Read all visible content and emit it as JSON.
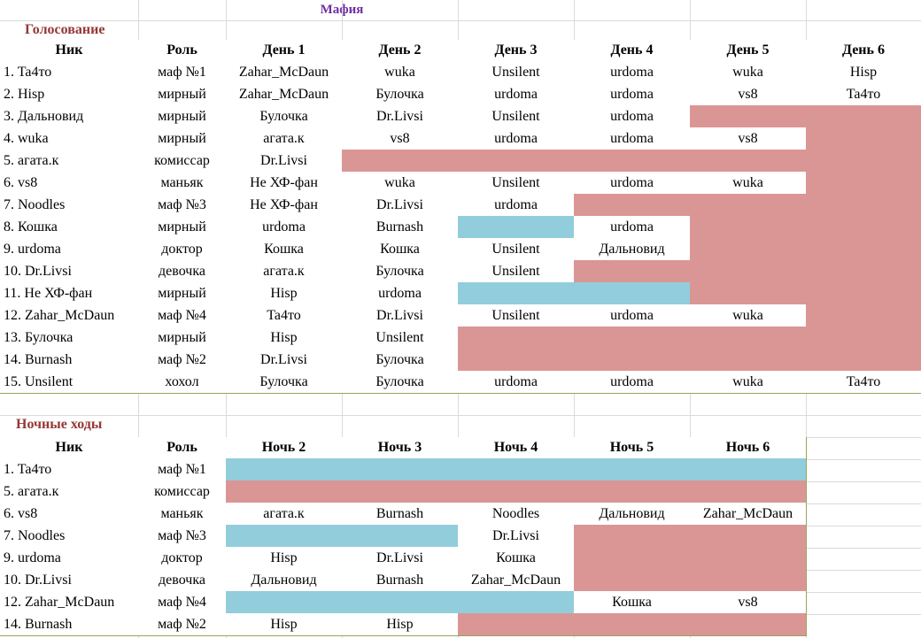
{
  "title": "Мафия",
  "voting": {
    "title": "Голосование",
    "header": [
      "Ник",
      "Роль",
      "День 1",
      "День 2",
      "День 3",
      "День 4",
      "День 5",
      "День 6"
    ],
    "rows": [
      [
        "1. Ta4то",
        "маф №1",
        "Zahar_McDaun",
        "wuka",
        "Unsilent",
        "urdoma",
        "wuka",
        "Hisp"
      ],
      [
        "2. Hisp",
        "мирный",
        "Zahar_McDaun",
        "Булочка",
        "urdoma",
        "urdoma",
        "vs8",
        "Ta4то"
      ],
      [
        "3. Дальновид",
        "мирный",
        "Булочка",
        "Dr.Livsi",
        "Unsilent",
        "urdoma",
        null,
        null
      ],
      [
        "4. wuka",
        "мирный",
        "агата.к",
        "vs8",
        "urdoma",
        "urdoma",
        "vs8",
        null
      ],
      [
        "5. агата.к",
        "комиссар",
        "Dr.Livsi",
        null,
        null,
        null,
        null,
        null
      ],
      [
        "6. vs8",
        "маньяк",
        "Не ХФ-фан",
        "wuka",
        "Unsilent",
        "urdoma",
        "wuka",
        null
      ],
      [
        "7. Noodles",
        "маф №3",
        "Не ХФ-фан",
        "Dr.Livsi",
        "urdoma",
        null,
        null,
        null
      ],
      [
        "8. Кошка",
        "мирный",
        "urdoma",
        "Burnash",
        null,
        "urdoma",
        null,
        null
      ],
      [
        "9. urdoma",
        "доктор",
        "Кошка",
        "Кошка",
        "Unsilent",
        "Дальновид",
        null,
        null
      ],
      [
        "10. Dr.Livsi",
        "девочка",
        "агата.к",
        "Булочка",
        "Unsilent",
        null,
        null,
        null
      ],
      [
        "11. Не ХФ-фан",
        "мирный",
        "Hisp",
        "urdoma",
        null,
        null,
        null,
        null
      ],
      [
        "12. Zahar_McDaun",
        "маф №4",
        "Ta4то",
        "Dr.Livsi",
        "Unsilent",
        "urdoma",
        "wuka",
        null
      ],
      [
        "13. Булочка",
        "мирный",
        "Hisp",
        "Unsilent",
        null,
        null,
        null,
        null
      ],
      [
        "14. Burnash",
        "маф №2",
        "Dr.Livsi",
        "Булочка",
        null,
        null,
        null,
        null
      ],
      [
        "15. Unsilent",
        "хохол",
        "Булочка",
        "Булочка",
        "urdoma",
        "urdoma",
        "wuka",
        "Ta4то"
      ]
    ],
    "fills": [
      [
        null,
        null,
        null,
        null,
        null,
        null,
        null,
        null
      ],
      [
        null,
        null,
        null,
        null,
        null,
        null,
        null,
        null
      ],
      [
        null,
        null,
        null,
        null,
        null,
        null,
        "#da9694",
        "#da9694"
      ],
      [
        null,
        null,
        null,
        null,
        null,
        null,
        null,
        "#da9694"
      ],
      [
        null,
        null,
        null,
        "#da9694",
        "#da9694",
        "#da9694",
        "#da9694",
        "#da9694"
      ],
      [
        null,
        null,
        null,
        null,
        null,
        null,
        null,
        "#da9694"
      ],
      [
        null,
        null,
        null,
        null,
        null,
        "#da9694",
        "#da9694",
        "#da9694"
      ],
      [
        null,
        null,
        null,
        null,
        "#92cddc",
        null,
        "#da9694",
        "#da9694"
      ],
      [
        null,
        null,
        null,
        null,
        null,
        null,
        "#da9694",
        "#da9694"
      ],
      [
        null,
        null,
        null,
        null,
        null,
        "#da9694",
        "#da9694",
        "#da9694"
      ],
      [
        null,
        null,
        null,
        null,
        "#92cddc",
        "#92cddc",
        "#da9694",
        "#da9694"
      ],
      [
        null,
        null,
        null,
        null,
        null,
        null,
        null,
        "#da9694"
      ],
      [
        null,
        null,
        null,
        null,
        "#da9694",
        "#da9694",
        "#da9694",
        "#da9694"
      ],
      [
        null,
        null,
        null,
        null,
        "#da9694",
        "#da9694",
        "#da9694",
        "#da9694"
      ],
      [
        null,
        null,
        null,
        null,
        null,
        null,
        null,
        null
      ]
    ]
  },
  "night": {
    "title": "Ночные ходы",
    "header": [
      "Ник",
      "Роль",
      "Ночь 2",
      "Ночь 3",
      "Ночь 4",
      "Ночь 5",
      "Ночь 6"
    ],
    "rows": [
      [
        "1. Ta4то",
        "маф №1",
        null,
        null,
        null,
        null,
        null
      ],
      [
        "5. агата.к",
        "комиссар",
        null,
        null,
        null,
        null,
        null
      ],
      [
        "6. vs8",
        "маньяк",
        "агата.к",
        "Burnash",
        "Noodles",
        "Дальновид",
        "Zahar_McDaun"
      ],
      [
        "7. Noodles",
        "маф №3",
        null,
        null,
        "Dr.Livsi",
        null,
        null
      ],
      [
        "9. urdoma",
        "доктор",
        "Hisp",
        "Dr.Livsi",
        "Кошка",
        null,
        null
      ],
      [
        "10. Dr.Livsi",
        "девочка",
        "Дальновид",
        "Burnash",
        "Zahar_McDaun",
        null,
        null
      ],
      [
        "12. Zahar_McDaun",
        "маф №4",
        null,
        null,
        null,
        "Кошка",
        "vs8"
      ],
      [
        "14. Burnash",
        "маф №2",
        "Hisp",
        "Hisp",
        null,
        null,
        null
      ]
    ],
    "fills": [
      [
        null,
        null,
        "#92cddc",
        "#92cddc",
        "#92cddc",
        "#92cddc",
        "#92cddc"
      ],
      [
        null,
        null,
        "#da9694",
        "#da9694",
        "#da9694",
        "#da9694",
        "#da9694"
      ],
      [
        null,
        null,
        null,
        null,
        null,
        null,
        null
      ],
      [
        null,
        null,
        "#92cddc",
        "#92cddc",
        null,
        "#da9694",
        "#da9694"
      ],
      [
        null,
        null,
        null,
        null,
        null,
        "#da9694",
        "#da9694"
      ],
      [
        null,
        null,
        null,
        null,
        null,
        "#da9694",
        "#da9694"
      ],
      [
        null,
        null,
        "#92cddc",
        "#92cddc",
        "#92cddc",
        null,
        null
      ],
      [
        null,
        null,
        null,
        null,
        "#da9694",
        "#da9694",
        "#da9694"
      ]
    ]
  }
}
